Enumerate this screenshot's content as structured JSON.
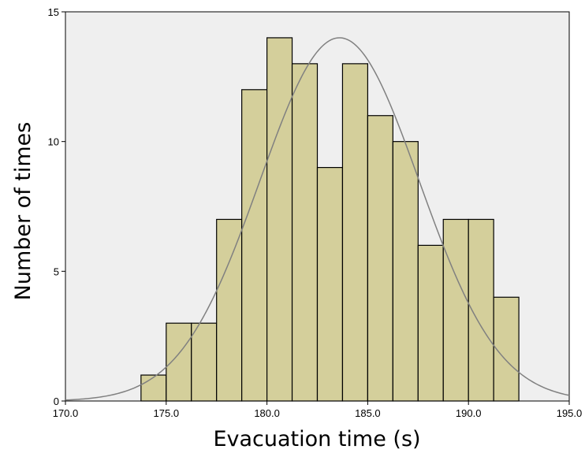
{
  "chart_data": {
    "type": "bar",
    "subtype": "histogram",
    "xlabel": "Evacuation time (s)",
    "ylabel": "Number of times",
    "xlim": [
      170.0,
      195.0
    ],
    "ylim": [
      0,
      15
    ],
    "x_ticks": [
      "170.0",
      "175.0",
      "180.0",
      "185.0",
      "190.0",
      "195.0"
    ],
    "y_ticks": [
      "0",
      "5",
      "10",
      "15"
    ],
    "bin_width": 1.25,
    "bins": [
      {
        "start": 173.75,
        "end": 175.0,
        "count": 1
      },
      {
        "start": 175.0,
        "end": 176.25,
        "count": 3
      },
      {
        "start": 176.25,
        "end": 177.5,
        "count": 3
      },
      {
        "start": 177.5,
        "end": 178.75,
        "count": 7
      },
      {
        "start": 178.75,
        "end": 180.0,
        "count": 12
      },
      {
        "start": 180.0,
        "end": 181.25,
        "count": 14
      },
      {
        "start": 181.25,
        "end": 182.5,
        "count": 13
      },
      {
        "start": 182.5,
        "end": 183.75,
        "count": 9
      },
      {
        "start": 183.75,
        "end": 185.0,
        "count": 13
      },
      {
        "start": 185.0,
        "end": 186.25,
        "count": 11
      },
      {
        "start": 186.25,
        "end": 187.5,
        "count": 10
      },
      {
        "start": 187.5,
        "end": 188.75,
        "count": 6
      },
      {
        "start": 188.75,
        "end": 190.0,
        "count": 7
      },
      {
        "start": 190.0,
        "end": 191.25,
        "count": 7
      },
      {
        "start": 191.25,
        "end": 192.5,
        "count": 4
      }
    ],
    "normal_curve": {
      "mean": 183.6,
      "sd": 3.95,
      "peak": 14.0
    },
    "grid": false,
    "colors": {
      "plot_background": "#efefef",
      "bar_fill": "#d4cf9b",
      "bar_stroke": "#000000",
      "curve": "#808080"
    }
  }
}
